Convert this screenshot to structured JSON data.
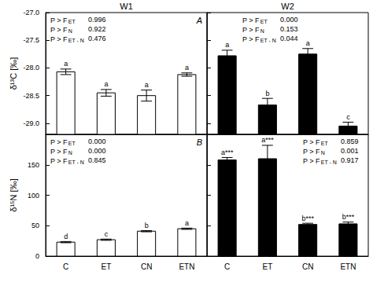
{
  "chart_data": [
    {
      "type": "bar",
      "title": "W1",
      "panel_label": "A",
      "y_label": "δ¹³C [‰]",
      "categories": [
        "C",
        "ET",
        "CN",
        "ETN"
      ],
      "values": [
        -28.07,
        -28.45,
        -28.5,
        -28.12
      ],
      "errors": [
        0.05,
        0.06,
        0.1,
        0.03
      ],
      "letters": [
        "a",
        "a",
        "a",
        "a"
      ],
      "color": "#ffffff",
      "ylim": [
        -29.2,
        -27.0
      ],
      "yticks": [
        {
          "value": -29.0,
          "label": "-29.0"
        },
        {
          "value": -28.5,
          "label": "-28.5"
        },
        {
          "value": -28.0,
          "label": "-28.0"
        },
        {
          "value": -27.5,
          "label": "-27.5"
        },
        {
          "value": -27.0,
          "label": "-27.0"
        }
      ],
      "tick_labels": "y",
      "grid": false,
      "annotations": [
        {
          "label": "P > F",
          "subscript": "ET",
          "value": "0.996"
        },
        {
          "label": "P > F",
          "subscript": "N",
          "value": "0.922"
        },
        {
          "label": "P > F",
          "subscript": "ET - N",
          "value": "0.476"
        }
      ]
    },
    {
      "type": "bar",
      "title": "W2",
      "categories": [
        "C",
        "ET",
        "CN",
        "ETN"
      ],
      "values": [
        -27.78,
        -28.67,
        -27.75,
        -29.05
      ],
      "errors": [
        0.1,
        0.12,
        0.1,
        0.07
      ],
      "letters": [
        "a",
        "b",
        "a",
        "c"
      ],
      "color": "#000000",
      "ylim": [
        -29.2,
        -27.0
      ],
      "yticks": [
        {
          "value": -29.0,
          "label": "-29.0"
        },
        {
          "value": -28.5,
          "label": "-28.5"
        },
        {
          "value": -28.0,
          "label": "-28.0"
        },
        {
          "value": -27.5,
          "label": "-27.5"
        },
        {
          "value": -27.0,
          "label": "-27.0"
        }
      ],
      "tick_labels": false,
      "grid": false,
      "annotations": [
        {
          "label": "P > F",
          "subscript": "ET",
          "value": "0.000"
        },
        {
          "label": "P > F",
          "subscript": "N",
          "value": "0.153"
        },
        {
          "label": "P > F",
          "subscript": "ET - N",
          "value": "0.044"
        }
      ]
    },
    {
      "type": "bar",
      "panel_label": "B",
      "y_label": "δ¹⁵N [‰]",
      "categories": [
        "C",
        "ET",
        "CN",
        "ETN"
      ],
      "values": [
        23,
        27,
        41,
        45
      ],
      "errors": [
        1,
        1,
        1,
        1
      ],
      "letters": [
        "d",
        "c",
        "b",
        "a"
      ],
      "color": "#ffffff",
      "ylim": [
        0,
        200
      ],
      "yticks": [
        0,
        50,
        100,
        150
      ],
      "tick_labels": true,
      "grid": false,
      "annotations": [
        {
          "label": "P > F",
          "subscript": "ET",
          "value": "0.000"
        },
        {
          "label": "P > F",
          "subscript": "N",
          "value": "0.000"
        },
        {
          "label": "P > F",
          "subscript": "ET - N",
          "value": "0.845"
        }
      ]
    },
    {
      "type": "bar",
      "categories": [
        "C",
        "ET",
        "CN",
        "ETN"
      ],
      "values": [
        158,
        160,
        52,
        53
      ],
      "errors": [
        4,
        22,
        2,
        3
      ],
      "letters": [
        "a***",
        "a***",
        "b***",
        "b***"
      ],
      "color": "#000000",
      "ylim": [
        0,
        200
      ],
      "yticks": [
        0,
        50,
        100,
        150
      ],
      "tick_labels": "x",
      "grid": false,
      "annotations": [
        {
          "label": "P > F",
          "subscript": "ET",
          "value": "0.859"
        },
        {
          "label": "P > F",
          "subscript": "N",
          "value": "0.001"
        },
        {
          "label": "P > F",
          "subscript": "ET - N",
          "value": "0.917"
        }
      ]
    }
  ]
}
